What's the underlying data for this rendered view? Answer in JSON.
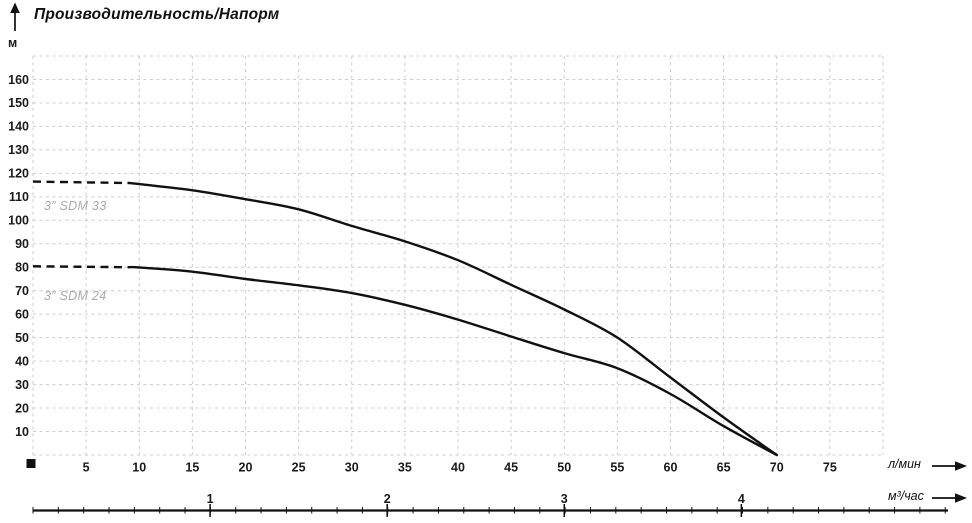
{
  "header": {
    "title": "Производительность/Напорм",
    "y_unit": "м"
  },
  "axes": {
    "primary_unit": "л/мин",
    "secondary_unit": "м³/час"
  },
  "colors": {
    "curve": "#111111",
    "grid": "#cccccc",
    "curve_label_gray": "#a9a9a9",
    "text": "#1a1a1a"
  },
  "chart_data": {
    "type": "line",
    "title": "Производительность/Напорм",
    "ylabel": "м",
    "xlabel_primary": "л/мин",
    "xlabel_secondary": "м³/час",
    "xlim": [
      0,
      80
    ],
    "ylim": [
      0,
      170
    ],
    "grid": "dashed, every 5 л/мин vertical and 10 м horizontal",
    "x_ticks": [
      5,
      10,
      15,
      20,
      25,
      30,
      35,
      40,
      45,
      50,
      55,
      60,
      65,
      70,
      75
    ],
    "y_ticks": [
      10,
      20,
      30,
      40,
      50,
      60,
      70,
      80,
      90,
      100,
      110,
      120,
      130,
      140,
      150,
      160
    ],
    "secondary_ticks": [
      1,
      2,
      3,
      4
    ],
    "secondary_factor": 16.667,
    "series": [
      {
        "name": "3” SDM 33",
        "dashed_points": [
          [
            0,
            116.5
          ],
          [
            9,
            115.9
          ]
        ],
        "solid_points": [
          [
            9,
            115.9
          ],
          [
            10,
            115.4
          ],
          [
            15,
            112.8
          ],
          [
            20,
            109
          ],
          [
            25,
            104.7
          ],
          [
            30,
            97.6
          ],
          [
            35,
            91
          ],
          [
            40,
            83
          ],
          [
            45,
            72.5
          ],
          [
            50,
            62
          ],
          [
            55,
            50
          ],
          [
            60,
            33
          ],
          [
            65,
            16
          ],
          [
            70,
            0
          ]
        ]
      },
      {
        "name": "3” SDM 24",
        "dashed_points": [
          [
            0,
            80.4
          ],
          [
            9,
            80
          ]
        ],
        "solid_points": [
          [
            9,
            80
          ],
          [
            10,
            79.9
          ],
          [
            15,
            78.1
          ],
          [
            20,
            75
          ],
          [
            25,
            72.3
          ],
          [
            30,
            69
          ],
          [
            35,
            64
          ],
          [
            40,
            57.7
          ],
          [
            45,
            50.5
          ],
          [
            50,
            43.4
          ],
          [
            55,
            37
          ],
          [
            60,
            26
          ],
          [
            65,
            12.3
          ],
          [
            70,
            0
          ]
        ]
      }
    ]
  }
}
